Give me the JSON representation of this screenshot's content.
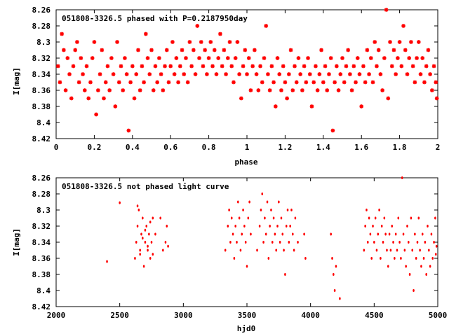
{
  "colors": {
    "points": "#ff0000",
    "axes": "#000000",
    "background": "#ffffff"
  },
  "chart_data": [
    {
      "type": "scatter",
      "title": "051808-3326.5 phased with P=0.2187950day",
      "xlabel": "phase",
      "ylabel": "I[mag]",
      "xlim": [
        0,
        2
      ],
      "ylim": [
        8.26,
        8.42
      ],
      "y_inverted": true,
      "grid": false,
      "marker": "star",
      "xticks": [
        "0",
        "0.2",
        "0.4",
        "0.6",
        "0.8",
        "1",
        "1.2",
        "1.4",
        "1.6",
        "1.8",
        "2"
      ],
      "yticks": [
        "8.26",
        "8.28",
        "8.3",
        "8.32",
        "8.34",
        "8.36",
        "8.38",
        "8.4",
        "8.42"
      ],
      "points": [
        [
          0.01,
          8.33
        ],
        [
          0.02,
          8.35
        ],
        [
          0.03,
          8.29
        ],
        [
          0.04,
          8.31
        ],
        [
          0.05,
          8.36
        ],
        [
          0.06,
          8.32
        ],
        [
          0.07,
          8.34
        ],
        [
          0.08,
          8.37
        ],
        [
          0.09,
          8.33
        ],
        [
          0.1,
          8.31
        ],
        [
          0.11,
          8.3
        ],
        [
          0.12,
          8.35
        ],
        [
          0.13,
          8.32
        ],
        [
          0.14,
          8.34
        ],
        [
          0.15,
          8.36
        ],
        [
          0.16,
          8.33
        ],
        [
          0.17,
          8.37
        ],
        [
          0.18,
          8.35
        ],
        [
          0.19,
          8.32
        ],
        [
          0.2,
          8.3
        ],
        [
          0.21,
          8.39
        ],
        [
          0.22,
          8.36
        ],
        [
          0.23,
          8.34
        ],
        [
          0.24,
          8.31
        ],
        [
          0.25,
          8.37
        ],
        [
          0.26,
          8.35
        ],
        [
          0.27,
          8.33
        ],
        [
          0.28,
          8.36
        ],
        [
          0.29,
          8.32
        ],
        [
          0.3,
          8.34
        ],
        [
          0.31,
          8.38
        ],
        [
          0.32,
          8.3
        ],
        [
          0.33,
          8.35
        ],
        [
          0.34,
          8.33
        ],
        [
          0.35,
          8.36
        ],
        [
          0.36,
          8.32
        ],
        [
          0.37,
          8.34
        ],
        [
          0.38,
          8.41
        ],
        [
          0.39,
          8.35
        ],
        [
          0.4,
          8.33
        ],
        [
          0.41,
          8.37
        ],
        [
          0.42,
          8.34
        ],
        [
          0.43,
          8.31
        ],
        [
          0.44,
          8.36
        ],
        [
          0.45,
          8.33
        ],
        [
          0.46,
          8.35
        ],
        [
          0.47,
          8.29
        ],
        [
          0.48,
          8.32
        ],
        [
          0.49,
          8.34
        ],
        [
          0.5,
          8.31
        ],
        [
          0.51,
          8.36
        ],
        [
          0.52,
          8.33
        ],
        [
          0.53,
          8.35
        ],
        [
          0.54,
          8.32
        ],
        [
          0.55,
          8.34
        ],
        [
          0.56,
          8.36
        ],
        [
          0.57,
          8.33
        ],
        [
          0.58,
          8.31
        ],
        [
          0.59,
          8.35
        ],
        [
          0.6,
          8.33
        ],
        [
          0.61,
          8.3
        ],
        [
          0.62,
          8.34
        ],
        [
          0.63,
          8.32
        ],
        [
          0.64,
          8.35
        ],
        [
          0.65,
          8.33
        ],
        [
          0.66,
          8.31
        ],
        [
          0.67,
          8.34
        ],
        [
          0.68,
          8.32
        ],
        [
          0.69,
          8.35
        ],
        [
          0.7,
          8.3
        ],
        [
          0.71,
          8.33
        ],
        [
          0.72,
          8.31
        ],
        [
          0.73,
          8.34
        ],
        [
          0.74,
          8.28
        ],
        [
          0.75,
          8.32
        ],
        [
          0.76,
          8.3
        ],
        [
          0.77,
          8.33
        ],
        [
          0.78,
          8.31
        ],
        [
          0.79,
          8.34
        ],
        [
          0.8,
          8.32
        ],
        [
          0.81,
          8.3
        ],
        [
          0.82,
          8.33
        ],
        [
          0.83,
          8.31
        ],
        [
          0.84,
          8.34
        ],
        [
          0.85,
          8.32
        ],
        [
          0.86,
          8.29
        ],
        [
          0.87,
          8.33
        ],
        [
          0.88,
          8.31
        ],
        [
          0.89,
          8.34
        ],
        [
          0.9,
          8.32
        ],
        [
          0.91,
          8.3
        ],
        [
          0.92,
          8.33
        ],
        [
          0.93,
          8.35
        ],
        [
          0.94,
          8.32
        ],
        [
          0.95,
          8.3
        ],
        [
          0.96,
          8.34
        ],
        [
          0.97,
          8.37
        ],
        [
          0.98,
          8.33
        ],
        [
          0.99,
          8.31
        ],
        [
          1.0,
          8.34
        ],
        [
          1.01,
          8.32
        ],
        [
          1.02,
          8.36
        ],
        [
          1.03,
          8.33
        ],
        [
          1.04,
          8.31
        ],
        [
          1.05,
          8.34
        ],
        [
          1.06,
          8.36
        ],
        [
          1.07,
          8.33
        ],
        [
          1.08,
          8.35
        ],
        [
          1.09,
          8.32
        ],
        [
          1.1,
          8.28
        ],
        [
          1.11,
          8.34
        ],
        [
          1.12,
          8.36
        ],
        [
          1.13,
          8.33
        ],
        [
          1.14,
          8.35
        ],
        [
          1.15,
          8.38
        ],
        [
          1.16,
          8.32
        ],
        [
          1.17,
          8.34
        ],
        [
          1.18,
          8.36
        ],
        [
          1.19,
          8.33
        ],
        [
          1.2,
          8.35
        ],
        [
          1.21,
          8.37
        ],
        [
          1.22,
          8.34
        ],
        [
          1.23,
          8.31
        ],
        [
          1.24,
          8.36
        ],
        [
          1.25,
          8.33
        ],
        [
          1.26,
          8.35
        ],
        [
          1.27,
          8.32
        ],
        [
          1.28,
          8.34
        ],
        [
          1.29,
          8.36
        ],
        [
          1.3,
          8.33
        ],
        [
          1.31,
          8.35
        ],
        [
          1.32,
          8.32
        ],
        [
          1.33,
          8.34
        ],
        [
          1.34,
          8.38
        ],
        [
          1.35,
          8.35
        ],
        [
          1.36,
          8.33
        ],
        [
          1.37,
          8.36
        ],
        [
          1.38,
          8.34
        ],
        [
          1.39,
          8.31
        ],
        [
          1.4,
          8.35
        ],
        [
          1.41,
          8.33
        ],
        [
          1.42,
          8.36
        ],
        [
          1.43,
          8.34
        ],
        [
          1.44,
          8.32
        ],
        [
          1.45,
          8.41
        ],
        [
          1.46,
          8.35
        ],
        [
          1.47,
          8.33
        ],
        [
          1.48,
          8.36
        ],
        [
          1.49,
          8.34
        ],
        [
          1.5,
          8.32
        ],
        [
          1.51,
          8.35
        ],
        [
          1.52,
          8.33
        ],
        [
          1.53,
          8.31
        ],
        [
          1.54,
          8.34
        ],
        [
          1.55,
          8.36
        ],
        [
          1.56,
          8.33
        ],
        [
          1.57,
          8.35
        ],
        [
          1.58,
          8.32
        ],
        [
          1.59,
          8.34
        ],
        [
          1.6,
          8.38
        ],
        [
          1.61,
          8.33
        ],
        [
          1.62,
          8.35
        ],
        [
          1.63,
          8.31
        ],
        [
          1.64,
          8.34
        ],
        [
          1.65,
          8.32
        ],
        [
          1.66,
          8.35
        ],
        [
          1.67,
          8.3
        ],
        [
          1.68,
          8.33
        ],
        [
          1.69,
          8.31
        ],
        [
          1.7,
          8.34
        ],
        [
          1.71,
          8.36
        ],
        [
          1.72,
          8.32
        ],
        [
          1.73,
          8.26
        ],
        [
          1.74,
          8.37
        ],
        [
          1.75,
          8.3
        ],
        [
          1.76,
          8.33
        ],
        [
          1.77,
          8.31
        ],
        [
          1.78,
          8.34
        ],
        [
          1.79,
          8.32
        ],
        [
          1.8,
          8.3
        ],
        [
          1.81,
          8.33
        ],
        [
          1.82,
          8.28
        ],
        [
          1.83,
          8.31
        ],
        [
          1.84,
          8.34
        ],
        [
          1.85,
          8.32
        ],
        [
          1.86,
          8.3
        ],
        [
          1.87,
          8.33
        ],
        [
          1.88,
          8.35
        ],
        [
          1.89,
          8.32
        ],
        [
          1.9,
          8.3
        ],
        [
          1.91,
          8.34
        ],
        [
          1.92,
          8.32
        ],
        [
          1.93,
          8.35
        ],
        [
          1.94,
          8.33
        ],
        [
          1.95,
          8.31
        ],
        [
          1.96,
          8.34
        ],
        [
          1.97,
          8.36
        ],
        [
          1.98,
          8.33
        ],
        [
          1.99,
          8.35
        ],
        [
          1.995,
          8.37
        ]
      ]
    },
    {
      "type": "scatter",
      "title": "051808-3326.5 not phased light curve",
      "xlabel": "hjd0",
      "ylabel": "I[mag]",
      "xlim": [
        2000,
        5000
      ],
      "ylim": [
        8.26,
        8.42
      ],
      "y_inverted": true,
      "grid": false,
      "marker": "dot",
      "xticks": [
        "2000",
        "2500",
        "3000",
        "3500",
        "4000",
        "4500",
        "5000"
      ],
      "yticks": [
        "8.26",
        "8.28",
        "8.3",
        "8.32",
        "8.34",
        "8.36",
        "8.38",
        "8.4",
        "8.42"
      ],
      "points": [
        [
          2400,
          8.364
        ],
        [
          2500,
          8.291
        ],
        [
          2620,
          8.36
        ],
        [
          2630,
          8.34
        ],
        [
          2640,
          8.32
        ],
        [
          2650,
          8.3
        ],
        [
          2660,
          8.35
        ],
        [
          2670,
          8.33
        ],
        [
          2680,
          8.31
        ],
        [
          2690,
          8.37
        ],
        [
          2700,
          8.34
        ],
        [
          2710,
          8.32
        ],
        [
          2720,
          8.35
        ],
        [
          2730,
          8.33
        ],
        [
          2740,
          8.36
        ],
        [
          2750,
          8.34
        ],
        [
          2760,
          8.31
        ],
        [
          2640,
          8.295
        ],
        [
          2660,
          8.355
        ],
        [
          2680,
          8.335
        ],
        [
          2700,
          8.325
        ],
        [
          2720,
          8.345
        ],
        [
          2740,
          8.315
        ],
        [
          2760,
          8.355
        ],
        [
          2780,
          8.33
        ],
        [
          2820,
          8.31
        ],
        [
          2840,
          8.35
        ],
        [
          2860,
          8.34
        ],
        [
          2870,
          8.32
        ],
        [
          2880,
          8.345
        ],
        [
          3330,
          8.35
        ],
        [
          3350,
          8.32
        ],
        [
          3360,
          8.3
        ],
        [
          3370,
          8.34
        ],
        [
          3380,
          8.31
        ],
        [
          3390,
          8.33
        ],
        [
          3400,
          8.36
        ],
        [
          3410,
          8.32
        ],
        [
          3420,
          8.34
        ],
        [
          3430,
          8.29
        ],
        [
          3440,
          8.31
        ],
        [
          3450,
          8.35
        ],
        [
          3460,
          8.33
        ],
        [
          3470,
          8.3
        ],
        [
          3480,
          8.32
        ],
        [
          3490,
          8.34
        ],
        [
          3500,
          8.37
        ],
        [
          3510,
          8.31
        ],
        [
          3520,
          8.29
        ],
        [
          3530,
          8.33
        ],
        [
          3580,
          8.35
        ],
        [
          3600,
          8.32
        ],
        [
          3610,
          8.3
        ],
        [
          3620,
          8.28
        ],
        [
          3630,
          8.34
        ],
        [
          3640,
          8.31
        ],
        [
          3650,
          8.33
        ],
        [
          3660,
          8.29
        ],
        [
          3670,
          8.36
        ],
        [
          3680,
          8.32
        ],
        [
          3690,
          8.3
        ],
        [
          3700,
          8.34
        ],
        [
          3710,
          8.31
        ],
        [
          3720,
          8.33
        ],
        [
          3730,
          8.35
        ],
        [
          3740,
          8.32
        ],
        [
          3750,
          8.29
        ],
        [
          3760,
          8.34
        ],
        [
          3770,
          8.31
        ],
        [
          3780,
          8.33
        ],
        [
          3790,
          8.35
        ],
        [
          3800,
          8.38
        ],
        [
          3810,
          8.32
        ],
        [
          3820,
          8.3
        ],
        [
          3830,
          8.34
        ],
        [
          3840,
          8.32
        ],
        [
          3850,
          8.3
        ],
        [
          3860,
          8.33
        ],
        [
          3870,
          8.35
        ],
        [
          3880,
          8.31
        ],
        [
          3900,
          8.34
        ],
        [
          3950,
          8.33
        ],
        [
          3960,
          8.36
        ],
        [
          4160,
          8.33
        ],
        [
          4170,
          8.36
        ],
        [
          4180,
          8.38
        ],
        [
          4190,
          8.4
        ],
        [
          4200,
          8.37
        ],
        [
          4230,
          8.41
        ],
        [
          4420,
          8.35
        ],
        [
          4430,
          8.32
        ],
        [
          4440,
          8.3
        ],
        [
          4450,
          8.34
        ],
        [
          4460,
          8.31
        ],
        [
          4470,
          8.33
        ],
        [
          4480,
          8.36
        ],
        [
          4490,
          8.32
        ],
        [
          4500,
          8.34
        ],
        [
          4510,
          8.31
        ],
        [
          4520,
          8.35
        ],
        [
          4530,
          8.33
        ],
        [
          4540,
          8.3
        ],
        [
          4550,
          8.36
        ],
        [
          4560,
          8.32
        ],
        [
          4570,
          8.34
        ],
        [
          4580,
          8.31
        ],
        [
          4590,
          8.33
        ],
        [
          4600,
          8.35
        ],
        [
          4610,
          8.37
        ],
        [
          4620,
          8.33
        ],
        [
          4630,
          8.35
        ],
        [
          4640,
          8.32
        ],
        [
          4650,
          8.34
        ],
        [
          4660,
          8.36
        ],
        [
          4670,
          8.33
        ],
        [
          4680,
          8.35
        ],
        [
          4690,
          8.31
        ],
        [
          4700,
          8.34
        ],
        [
          4710,
          8.36
        ],
        [
          4720,
          8.26
        ],
        [
          4730,
          8.33
        ],
        [
          4740,
          8.35
        ],
        [
          4750,
          8.37
        ],
        [
          4760,
          8.32
        ],
        [
          4770,
          8.34
        ],
        [
          4780,
          8.38
        ],
        [
          4790,
          8.31
        ],
        [
          4800,
          8.35
        ],
        [
          4810,
          8.4
        ],
        [
          4820,
          8.33
        ],
        [
          4830,
          8.36
        ],
        [
          4840,
          8.34
        ],
        [
          4850,
          8.31
        ],
        [
          4860,
          8.35
        ],
        [
          4870,
          8.37
        ],
        [
          4880,
          8.33
        ],
        [
          4890,
          8.36
        ],
        [
          4900,
          8.34
        ],
        [
          4910,
          8.38
        ],
        [
          4920,
          8.32
        ],
        [
          4930,
          8.35
        ],
        [
          4940,
          8.37
        ],
        [
          4950,
          8.33
        ],
        [
          4960,
          8.36
        ],
        [
          4970,
          8.34
        ],
        [
          4980,
          8.31
        ],
        [
          4985,
          8.355
        ],
        [
          4990,
          8.345
        ]
      ]
    }
  ]
}
